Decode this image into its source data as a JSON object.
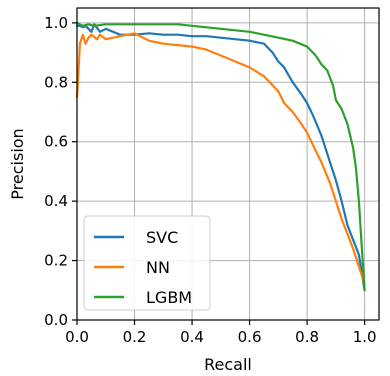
{
  "chart_data": {
    "type": "line",
    "title": "",
    "xlabel": "Recall",
    "ylabel": "Precision",
    "xlim": [
      0.0,
      1.05
    ],
    "ylim": [
      0.0,
      1.05
    ],
    "xticks": [
      "0.0",
      "0.2",
      "0.4",
      "0.6",
      "0.8",
      "1.0"
    ],
    "yticks": [
      "0.0",
      "0.2",
      "0.4",
      "0.6",
      "0.8",
      "1.0"
    ],
    "grid": true,
    "legend_position": "lower-left",
    "series": [
      {
        "name": "SVC",
        "color": "#1f77b4",
        "x": [
          0.0,
          0.01,
          0.02,
          0.03,
          0.05,
          0.06,
          0.08,
          0.1,
          0.15,
          0.2,
          0.25,
          0.3,
          0.35,
          0.4,
          0.45,
          0.5,
          0.55,
          0.6,
          0.65,
          0.68,
          0.7,
          0.72,
          0.75,
          0.78,
          0.8,
          0.82,
          0.85,
          0.87,
          0.9,
          0.92,
          0.94,
          0.96,
          0.98,
          1.0
        ],
        "y": [
          0.99,
          0.99,
          0.985,
          0.99,
          0.97,
          0.995,
          0.97,
          0.98,
          0.96,
          0.96,
          0.965,
          0.96,
          0.96,
          0.955,
          0.955,
          0.95,
          0.945,
          0.94,
          0.93,
          0.9,
          0.87,
          0.85,
          0.8,
          0.76,
          0.73,
          0.69,
          0.62,
          0.56,
          0.47,
          0.4,
          0.32,
          0.27,
          0.22,
          0.1
        ]
      },
      {
        "name": "NN",
        "color": "#ff7f0e",
        "x": [
          0.0,
          0.003,
          0.01,
          0.02,
          0.03,
          0.04,
          0.05,
          0.07,
          0.08,
          0.1,
          0.15,
          0.2,
          0.25,
          0.3,
          0.35,
          0.4,
          0.45,
          0.5,
          0.55,
          0.6,
          0.65,
          0.7,
          0.72,
          0.75,
          0.78,
          0.8,
          0.82,
          0.85,
          0.88,
          0.9,
          0.92,
          0.94,
          0.96,
          0.98,
          1.0
        ],
        "y": [
          0.75,
          0.8,
          0.93,
          0.96,
          0.93,
          0.95,
          0.96,
          0.945,
          0.96,
          0.945,
          0.955,
          0.965,
          0.94,
          0.93,
          0.925,
          0.92,
          0.91,
          0.89,
          0.87,
          0.85,
          0.82,
          0.77,
          0.73,
          0.7,
          0.66,
          0.63,
          0.59,
          0.53,
          0.46,
          0.4,
          0.34,
          0.29,
          0.24,
          0.18,
          0.12
        ]
      },
      {
        "name": "LGBM",
        "color": "#2ca02c",
        "x": [
          0.0,
          0.02,
          0.04,
          0.06,
          0.1,
          0.15,
          0.2,
          0.25,
          0.3,
          0.35,
          0.4,
          0.45,
          0.5,
          0.55,
          0.6,
          0.65,
          0.7,
          0.75,
          0.8,
          0.83,
          0.85,
          0.87,
          0.89,
          0.9,
          0.92,
          0.94,
          0.96,
          0.97,
          0.98,
          0.99,
          1.0
        ],
        "y": [
          1.0,
          0.99,
          0.995,
          0.99,
          0.995,
          0.995,
          0.995,
          0.995,
          0.995,
          0.995,
          0.99,
          0.985,
          0.98,
          0.975,
          0.97,
          0.96,
          0.95,
          0.94,
          0.92,
          0.89,
          0.86,
          0.84,
          0.79,
          0.74,
          0.71,
          0.66,
          0.58,
          0.51,
          0.4,
          0.25,
          0.1
        ]
      }
    ]
  }
}
